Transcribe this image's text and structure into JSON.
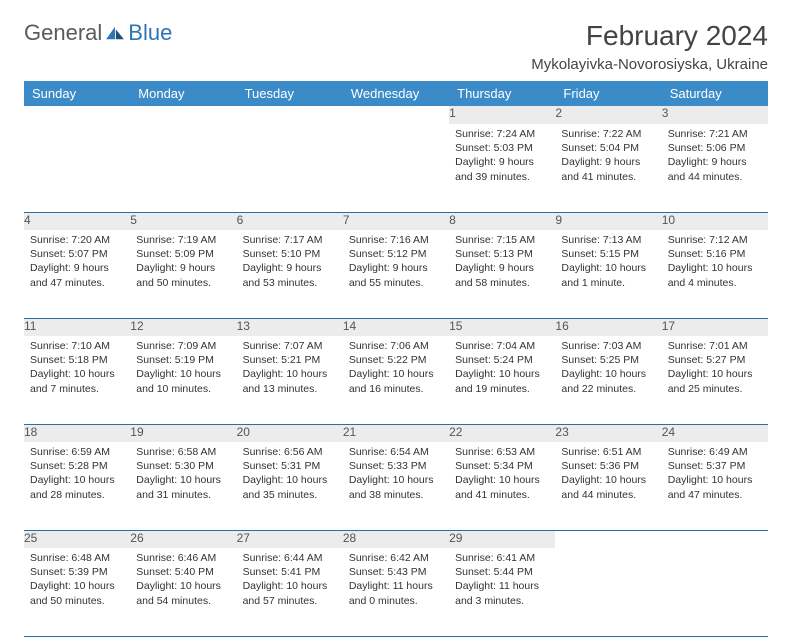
{
  "brand": {
    "name_part1": "General",
    "name_part2": "Blue"
  },
  "title": "February 2024",
  "location": "Mykolayivka-Novorosiyska, Ukraine",
  "colors": {
    "header_bg": "#3b8bc9",
    "header_text": "#ffffff",
    "daynum_bg": "#ececec",
    "row_border": "#2e6da4",
    "body_text": "#333333",
    "title_text": "#444444",
    "brand_gray": "#5a5a5a",
    "brand_blue": "#2e75b6"
  },
  "fonts": {
    "title_pt": 28,
    "location_pt": 15,
    "header_pt": 13,
    "daynum_pt": 12,
    "body_pt": 10.5
  },
  "weekdays": [
    "Sunday",
    "Monday",
    "Tuesday",
    "Wednesday",
    "Thursday",
    "Friday",
    "Saturday"
  ],
  "weeks": [
    [
      null,
      null,
      null,
      null,
      {
        "d": "1",
        "sunrise": "7:24 AM",
        "sunset": "5:03 PM",
        "daylight": "9 hours and 39 minutes."
      },
      {
        "d": "2",
        "sunrise": "7:22 AM",
        "sunset": "5:04 PM",
        "daylight": "9 hours and 41 minutes."
      },
      {
        "d": "3",
        "sunrise": "7:21 AM",
        "sunset": "5:06 PM",
        "daylight": "9 hours and 44 minutes."
      }
    ],
    [
      {
        "d": "4",
        "sunrise": "7:20 AM",
        "sunset": "5:07 PM",
        "daylight": "9 hours and 47 minutes."
      },
      {
        "d": "5",
        "sunrise": "7:19 AM",
        "sunset": "5:09 PM",
        "daylight": "9 hours and 50 minutes."
      },
      {
        "d": "6",
        "sunrise": "7:17 AM",
        "sunset": "5:10 PM",
        "daylight": "9 hours and 53 minutes."
      },
      {
        "d": "7",
        "sunrise": "7:16 AM",
        "sunset": "5:12 PM",
        "daylight": "9 hours and 55 minutes."
      },
      {
        "d": "8",
        "sunrise": "7:15 AM",
        "sunset": "5:13 PM",
        "daylight": "9 hours and 58 minutes."
      },
      {
        "d": "9",
        "sunrise": "7:13 AM",
        "sunset": "5:15 PM",
        "daylight": "10 hours and 1 minute."
      },
      {
        "d": "10",
        "sunrise": "7:12 AM",
        "sunset": "5:16 PM",
        "daylight": "10 hours and 4 minutes."
      }
    ],
    [
      {
        "d": "11",
        "sunrise": "7:10 AM",
        "sunset": "5:18 PM",
        "daylight": "10 hours and 7 minutes."
      },
      {
        "d": "12",
        "sunrise": "7:09 AM",
        "sunset": "5:19 PM",
        "daylight": "10 hours and 10 minutes."
      },
      {
        "d": "13",
        "sunrise": "7:07 AM",
        "sunset": "5:21 PM",
        "daylight": "10 hours and 13 minutes."
      },
      {
        "d": "14",
        "sunrise": "7:06 AM",
        "sunset": "5:22 PM",
        "daylight": "10 hours and 16 minutes."
      },
      {
        "d": "15",
        "sunrise": "7:04 AM",
        "sunset": "5:24 PM",
        "daylight": "10 hours and 19 minutes."
      },
      {
        "d": "16",
        "sunrise": "7:03 AM",
        "sunset": "5:25 PM",
        "daylight": "10 hours and 22 minutes."
      },
      {
        "d": "17",
        "sunrise": "7:01 AM",
        "sunset": "5:27 PM",
        "daylight": "10 hours and 25 minutes."
      }
    ],
    [
      {
        "d": "18",
        "sunrise": "6:59 AM",
        "sunset": "5:28 PM",
        "daylight": "10 hours and 28 minutes."
      },
      {
        "d": "19",
        "sunrise": "6:58 AM",
        "sunset": "5:30 PM",
        "daylight": "10 hours and 31 minutes."
      },
      {
        "d": "20",
        "sunrise": "6:56 AM",
        "sunset": "5:31 PM",
        "daylight": "10 hours and 35 minutes."
      },
      {
        "d": "21",
        "sunrise": "6:54 AM",
        "sunset": "5:33 PM",
        "daylight": "10 hours and 38 minutes."
      },
      {
        "d": "22",
        "sunrise": "6:53 AM",
        "sunset": "5:34 PM",
        "daylight": "10 hours and 41 minutes."
      },
      {
        "d": "23",
        "sunrise": "6:51 AM",
        "sunset": "5:36 PM",
        "daylight": "10 hours and 44 minutes."
      },
      {
        "d": "24",
        "sunrise": "6:49 AM",
        "sunset": "5:37 PM",
        "daylight": "10 hours and 47 minutes."
      }
    ],
    [
      {
        "d": "25",
        "sunrise": "6:48 AM",
        "sunset": "5:39 PM",
        "daylight": "10 hours and 50 minutes."
      },
      {
        "d": "26",
        "sunrise": "6:46 AM",
        "sunset": "5:40 PM",
        "daylight": "10 hours and 54 minutes."
      },
      {
        "d": "27",
        "sunrise": "6:44 AM",
        "sunset": "5:41 PM",
        "daylight": "10 hours and 57 minutes."
      },
      {
        "d": "28",
        "sunrise": "6:42 AM",
        "sunset": "5:43 PM",
        "daylight": "11 hours and 0 minutes."
      },
      {
        "d": "29",
        "sunrise": "6:41 AM",
        "sunset": "5:44 PM",
        "daylight": "11 hours and 3 minutes."
      },
      null,
      null
    ]
  ],
  "labels": {
    "sunrise": "Sunrise:",
    "sunset": "Sunset:",
    "daylight": "Daylight:"
  }
}
